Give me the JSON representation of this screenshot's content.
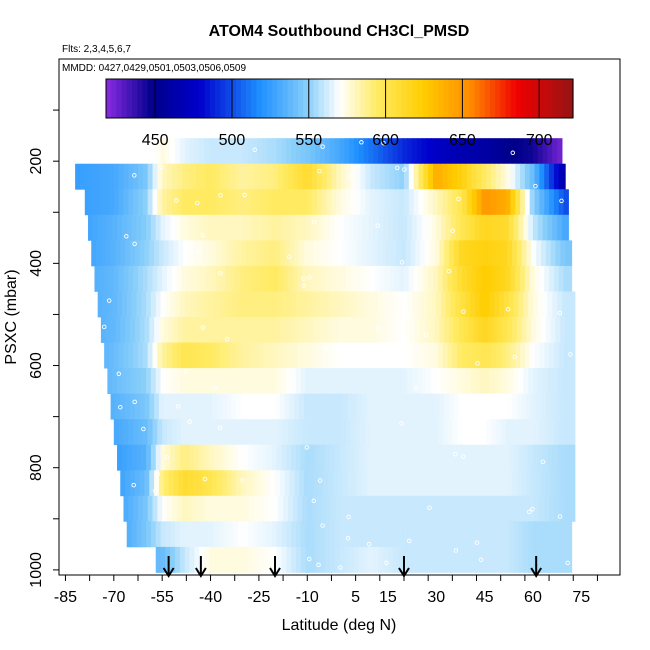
{
  "chart_data": {
    "type": "heatmap",
    "title": "ATOM4 Southbound CH3Cl_PMSD",
    "subtitle_flights": "Flts: 2,3,4,5,6,7",
    "subtitle_dates": "MMDD: 0427,0429,0501,0503,0506,0509",
    "xlabel": "Latitude (deg N)",
    "ylabel": "PSXC (mbar)",
    "xlim": [
      -87,
      87
    ],
    "ylim": [
      1010,
      0
    ],
    "x_ticks": [
      -85,
      -70,
      -55,
      -40,
      -25,
      -10,
      5,
      15,
      30,
      45,
      60,
      75
    ],
    "x_tick_labels": [
      "-85",
      "-70",
      "-55",
      "-40",
      "-25",
      "-10",
      "5",
      "15",
      "30",
      "45",
      "60",
      "75"
    ],
    "y_ticks": [
      200,
      400,
      600,
      800,
      1000
    ],
    "y_tick_labels": [
      "200",
      "400",
      "600",
      "800",
      "1000"
    ],
    "colorbar": {
      "range": [
        418,
        722
      ],
      "ticks": [
        450,
        500,
        550,
        600,
        650,
        700
      ],
      "tick_labels": [
        "450",
        "500",
        "550",
        "600",
        "650",
        "700"
      ]
    },
    "profile_latitudes": [
      -53,
      -43,
      -20,
      20,
      61
    ],
    "pressure_levels": [
      180,
      230,
      280,
      330,
      380,
      430,
      480,
      530,
      580,
      630,
      680,
      730,
      780,
      830,
      880,
      930,
      980
    ],
    "lat_range_per_level": [
      [
        -57,
        69
      ],
      [
        -82,
        70
      ],
      [
        -79,
        71
      ],
      [
        -78,
        71
      ],
      [
        -77,
        72
      ],
      [
        -76,
        72
      ],
      [
        -75,
        73
      ],
      [
        -74,
        73
      ],
      [
        -73,
        73
      ],
      [
        -72,
        73
      ],
      [
        -71,
        73
      ],
      [
        -70,
        73
      ],
      [
        -69,
        73
      ],
      [
        -68,
        73
      ],
      [
        -67,
        73
      ],
      [
        -66,
        72
      ],
      [
        -57,
        72
      ]
    ],
    "profile_values": [
      {
        "lat": -82,
        "values": [
          null,
          525,
          525,
          525,
          525,
          530,
          530,
          530,
          530,
          530,
          525,
          525,
          525,
          525,
          525,
          525,
          525
        ]
      },
      {
        "lat": -70,
        "values": [
          null,
          530,
          530,
          535,
          535,
          538,
          538,
          538,
          540,
          540,
          535,
          530,
          525,
          525,
          525,
          525,
          525
        ]
      },
      {
        "lat": -60,
        "values": [
          560,
          545,
          550,
          548,
          550,
          555,
          555,
          555,
          555,
          550,
          545,
          540,
          535,
          540,
          545,
          545,
          535
        ]
      },
      {
        "lat": -55,
        "values": [
          575,
          580,
          585,
          565,
          560,
          565,
          570,
          575,
          585,
          570,
          565,
          560,
          575,
          590,
          570,
          560,
          540
        ]
      },
      {
        "lat": -48,
        "values": [
          565,
          590,
          595,
          575,
          570,
          575,
          580,
          585,
          600,
          575,
          565,
          565,
          590,
          610,
          580,
          565,
          560
        ]
      },
      {
        "lat": -40,
        "values": [
          560,
          595,
          595,
          580,
          575,
          580,
          585,
          585,
          595,
          575,
          565,
          565,
          580,
          600,
          575,
          565,
          575
        ]
      },
      {
        "lat": -30,
        "values": [
          560,
          585,
          590,
          580,
          585,
          590,
          590,
          585,
          585,
          575,
          570,
          565,
          570,
          580,
          575,
          570,
          575
        ]
      },
      {
        "lat": -20,
        "values": [
          555,
          590,
          595,
          585,
          590,
          595,
          590,
          585,
          580,
          575,
          570,
          565,
          565,
          570,
          570,
          565,
          570
        ]
      },
      {
        "lat": -10,
        "values": [
          545,
          610,
          595,
          580,
          575,
          580,
          585,
          580,
          575,
          565,
          560,
          560,
          555,
          555,
          555,
          555,
          555
        ]
      },
      {
        "lat": 0,
        "values": [
          530,
          580,
          575,
          570,
          570,
          575,
          580,
          575,
          570,
          565,
          560,
          560,
          560,
          560,
          560,
          560,
          560
        ]
      },
      {
        "lat": 10,
        "values": [
          510,
          560,
          565,
          565,
          565,
          570,
          575,
          575,
          570,
          565,
          565,
          565,
          565,
          565,
          560,
          560,
          565
        ]
      },
      {
        "lat": 20,
        "values": [
          490,
          550,
          560,
          560,
          560,
          565,
          570,
          570,
          570,
          565,
          565,
          565,
          565,
          565,
          560,
          560,
          560
        ]
      },
      {
        "lat": 30,
        "values": [
          475,
          640,
          580,
          575,
          575,
          580,
          580,
          580,
          575,
          570,
          565,
          565,
          565,
          565,
          560,
          560,
          560
        ]
      },
      {
        "lat": 38,
        "values": [
          465,
          620,
          600,
          600,
          615,
          610,
          605,
          600,
          595,
          575,
          570,
          570,
          565,
          565,
          560,
          560,
          560
        ]
      },
      {
        "lat": 45,
        "values": [
          460,
          595,
          650,
          615,
          620,
          625,
          625,
          615,
          600,
          580,
          570,
          570,
          565,
          565,
          560,
          560,
          560
        ]
      },
      {
        "lat": 52,
        "values": [
          450,
          575,
          640,
          610,
          615,
          615,
          605,
          600,
          590,
          575,
          570,
          565,
          565,
          565,
          560,
          560,
          560
        ]
      },
      {
        "lat": 60,
        "values": [
          445,
          540,
          550,
          560,
          570,
          575,
          575,
          575,
          570,
          565,
          565,
          565,
          560,
          560,
          560,
          555,
          555
        ]
      },
      {
        "lat": 70,
        "values": [
          420,
          460,
          500,
          530,
          545,
          555,
          560,
          560,
          560,
          560,
          560,
          560,
          555,
          555,
          555,
          555,
          555
        ]
      }
    ],
    "grid": false,
    "legend": "colorbar-top"
  }
}
